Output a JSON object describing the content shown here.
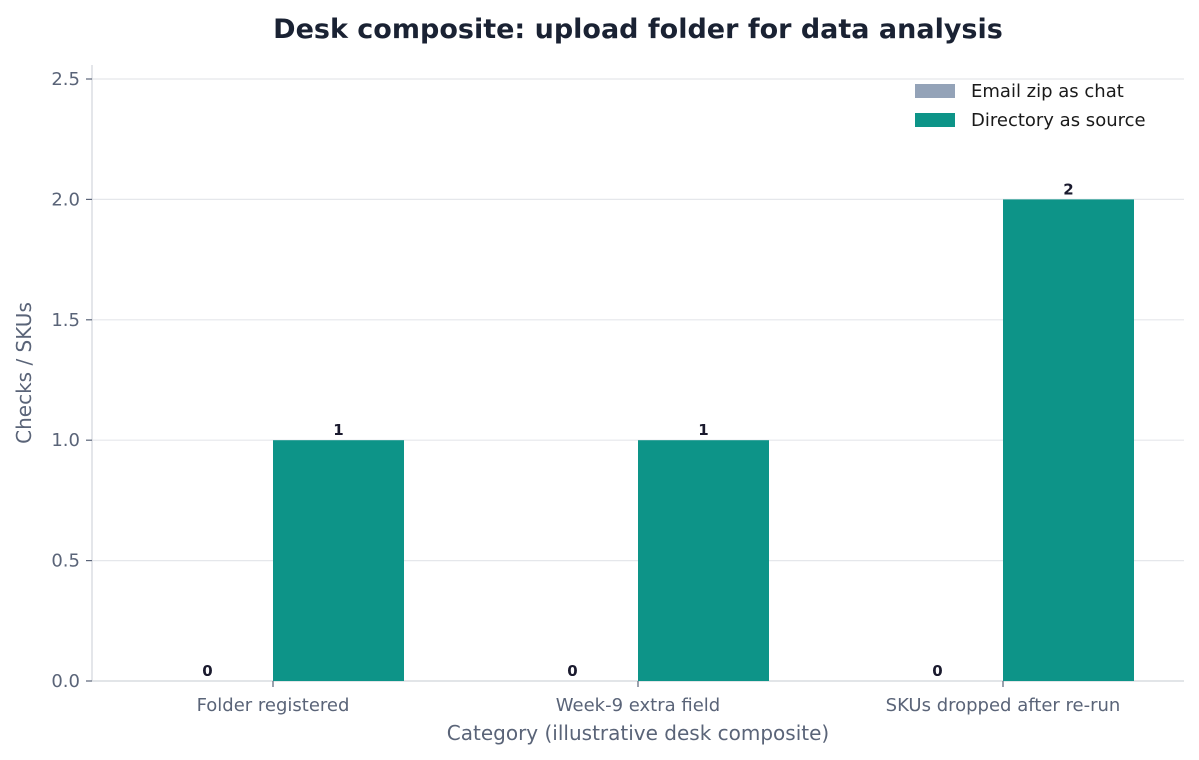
{
  "chart_data": {
    "type": "bar",
    "title": "Desk composite: upload folder for data analysis",
    "xlabel": "Category (illustrative desk composite)",
    "ylabel": "Checks / SKUs",
    "categories": [
      "Folder registered",
      "Week-9 extra field",
      "SKUs dropped after re-run"
    ],
    "series": [
      {
        "name": "Email zip as chat",
        "values": [
          0,
          0,
          0
        ],
        "color": "#94a3b8"
      },
      {
        "name": "Directory as source",
        "values": [
          1,
          1,
          2
        ],
        "color": "#0d9488"
      }
    ],
    "ylim": [
      0,
      2.5
    ],
    "yticks": [
      "0.0",
      "0.5",
      "1.0",
      "1.5",
      "2.0",
      "2.5"
    ],
    "grid": true,
    "legend_position": "top-right"
  }
}
